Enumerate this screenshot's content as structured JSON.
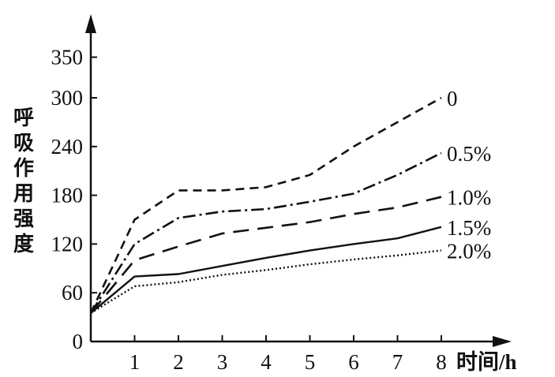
{
  "chart_data": {
    "type": "line",
    "ylabel": "呼吸作用强度",
    "xlabel": "时间/h",
    "x": [
      0,
      1,
      2,
      3,
      4,
      5,
      6,
      7,
      8
    ],
    "xticks": [
      "1",
      "2",
      "3",
      "4",
      "5",
      "6",
      "7",
      "8"
    ],
    "yticks": [
      "0",
      "60",
      "120",
      "180",
      "240",
      "300",
      "350"
    ],
    "ylim": [
      0,
      350
    ],
    "grid": false,
    "series": [
      {
        "name": "0",
        "values": [
          35,
          150,
          186,
          186,
          190,
          205,
          240,
          270,
          300
        ],
        "style": "dashed"
      },
      {
        "name": "0.5%",
        "values": [
          35,
          120,
          152,
          160,
          163,
          172,
          182,
          205,
          232
        ],
        "style": "dash-dot"
      },
      {
        "name": "1.0%",
        "values": [
          35,
          100,
          117,
          133,
          140,
          147,
          157,
          165,
          178
        ],
        "style": "long-dash"
      },
      {
        "name": "1.5%",
        "values": [
          35,
          80,
          83,
          93,
          103,
          112,
          120,
          127,
          141
        ],
        "style": "solid"
      },
      {
        "name": "2.0%",
        "values": [
          35,
          68,
          73,
          82,
          88,
          95,
          101,
          106,
          112
        ],
        "style": "dotted"
      }
    ]
  }
}
